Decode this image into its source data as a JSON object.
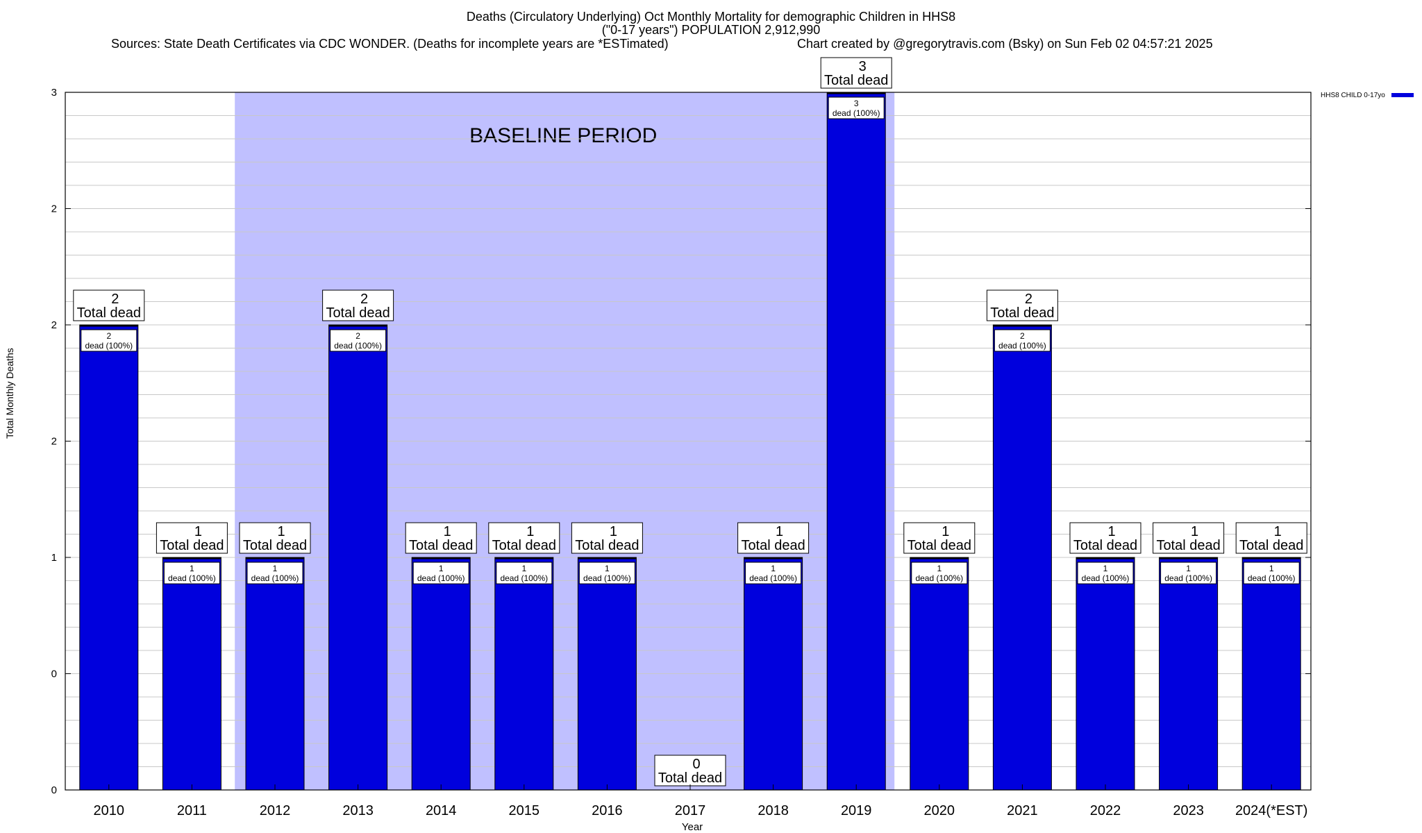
{
  "title_lines": [
    "Deaths (Circulatory Underlying) Oct Monthly Mortality for demographic Children in HHS8",
    "(\"0-17 years\") POPULATION 2,912,990"
  ],
  "sources_text": "Sources: State Death Certificates via CDC WONDER. (Deaths for incomplete years are *ESTimated)",
  "credit_text": "Chart created by @gregorytravis.com (Bsky) on Sun Feb 02 04:57:21 2025",
  "colors": {
    "bar": "#0000dd",
    "baseline_band": "#c0c0ff",
    "grid": "#c8c8c8"
  },
  "chart_data": {
    "type": "bar",
    "xlabel": "Year",
    "ylabel": "Total Monthly Deaths",
    "ylim": [
      0,
      3
    ],
    "y_tick_labels": [
      "0",
      "0",
      "1",
      "2",
      "2",
      "2",
      "3"
    ],
    "grid": true,
    "legend": {
      "label": "HHS8 CHILD 0-17yo",
      "position": "top-right"
    },
    "baseline_annotation": {
      "text": "BASELINE PERIOD",
      "from_category": "2012",
      "to_category": "2019"
    },
    "categories": [
      "2010",
      "2011",
      "2012",
      "2013",
      "2014",
      "2015",
      "2016",
      "2017",
      "2018",
      "2019",
      "2020",
      "2021",
      "2022",
      "2023",
      "2024(*EST)"
    ],
    "series": [
      {
        "name": "HHS8 CHILD 0-17yo",
        "values": [
          2,
          1,
          1,
          2,
          1,
          1,
          1,
          0,
          1,
          3,
          1,
          2,
          1,
          1,
          1
        ]
      }
    ],
    "top_labels": [
      "2\nTotal dead",
      "1\nTotal dead",
      "1\nTotal dead",
      "2\nTotal dead",
      "1\nTotal dead",
      "1\nTotal dead",
      "1\nTotal dead",
      "0\nTotal dead",
      "1\nTotal dead",
      "3\nTotal dead",
      "1\nTotal dead",
      "2\nTotal dead",
      "1\nTotal dead",
      "1\nTotal dead",
      "1\nTotal dead"
    ],
    "inner_labels": [
      "2\ndead (100%)",
      "1\ndead (100%)",
      "1\ndead (100%)",
      "2\ndead (100%)",
      "1\ndead (100%)",
      "1\ndead (100%)",
      "1\ndead (100%)",
      "",
      "1\ndead (100%)",
      "3\ndead (100%)",
      "1\ndead (100%)",
      "2\ndead (100%)",
      "1\ndead (100%)",
      "1\ndead (100%)",
      "1\ndead (100%)"
    ]
  }
}
